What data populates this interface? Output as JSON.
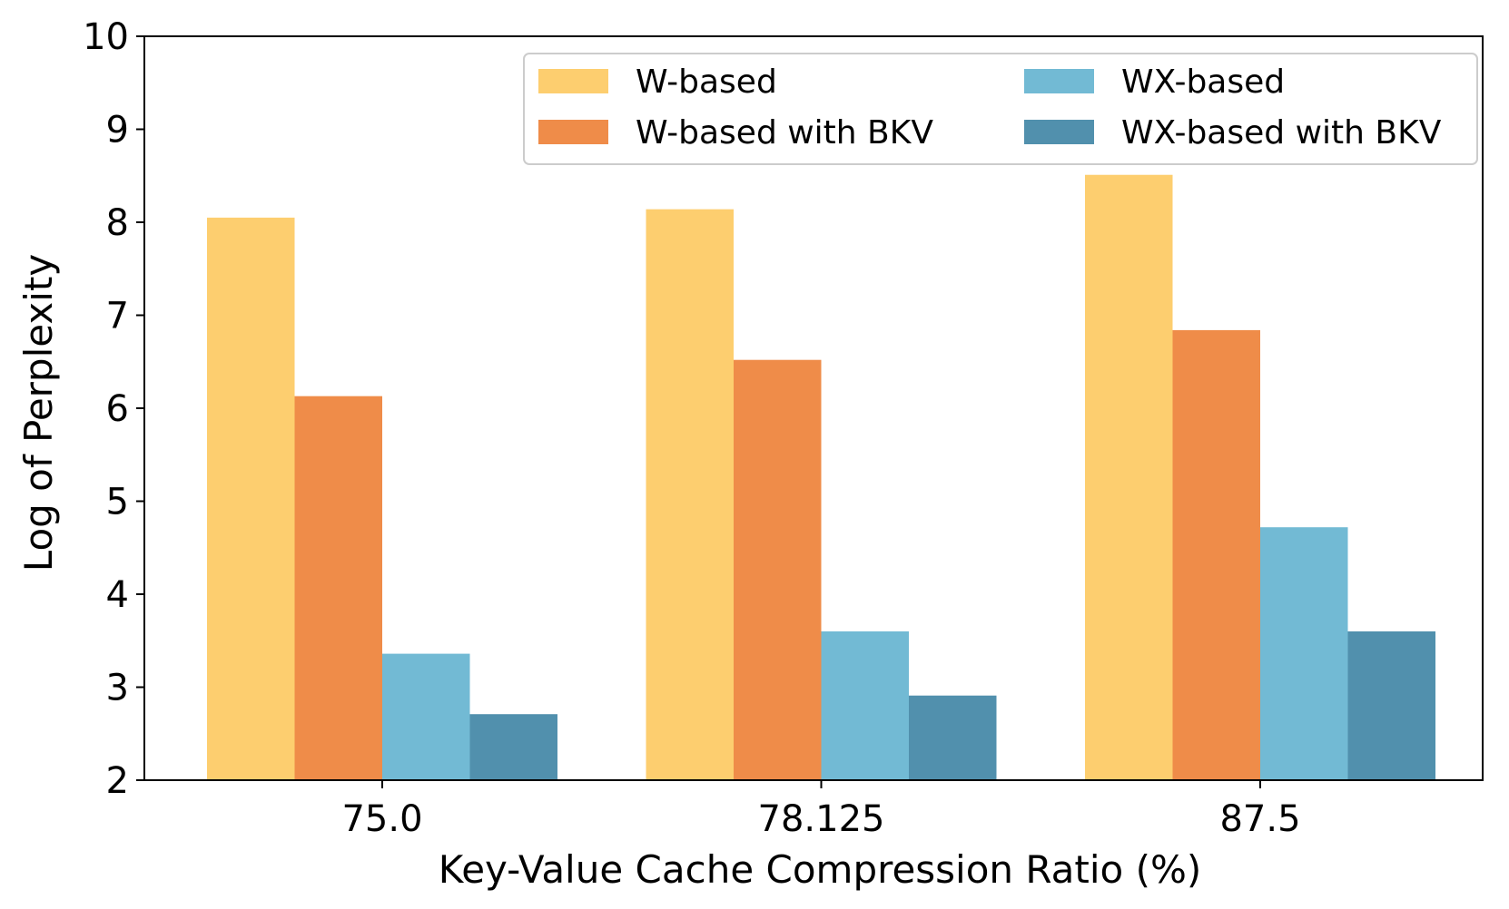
{
  "chart_data": {
    "type": "bar",
    "title": "",
    "xlabel": "Key-Value Cache Compression Ratio (%)",
    "ylabel": "Log of Perplexity",
    "categories": [
      "75.0",
      "78.125",
      "87.5"
    ],
    "ylim": [
      2,
      10
    ],
    "yticks": [
      "2",
      "3",
      "4",
      "5",
      "6",
      "7",
      "8",
      "9",
      "10"
    ],
    "grid": false,
    "legend_position": "top-right",
    "series": [
      {
        "name": "W-based",
        "color": "#FDCE6F",
        "values": [
          8.05,
          8.14,
          8.51
        ]
      },
      {
        "name": "W-based with BKV",
        "color": "#EF8C49",
        "values": [
          6.13,
          6.52,
          6.84
        ]
      },
      {
        "name": "WX-based",
        "color": "#72BAD4",
        "values": [
          3.36,
          3.6,
          4.72
        ]
      },
      {
        "name": "WX-based with BKV",
        "color": "#5190AD",
        "values": [
          2.71,
          2.91,
          3.6
        ]
      }
    ]
  }
}
